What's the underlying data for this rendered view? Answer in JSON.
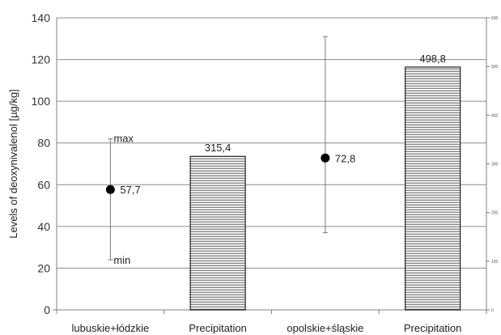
{
  "chart_data": {
    "type": "bar",
    "ylabel": "Levels of deoxynivalenol [µg/kg]",
    "ylim": [
      0,
      140
    ],
    "y_ticks": [
      0,
      20,
      40,
      60,
      80,
      100,
      120,
      140
    ],
    "right_axis": {
      "ylim": [
        0,
        600
      ],
      "ticks": [
        0,
        100,
        200,
        300,
        400,
        500,
        600
      ]
    },
    "grid": true,
    "categories": [
      "lubuskie+łódzkie",
      "Precipitation",
      "opolskie+śląskie",
      "Precipitation"
    ],
    "points": [
      {
        "category": "lubuskie+łódzkie",
        "value": 57.7,
        "label": "57,7",
        "min": 24,
        "max": 82,
        "min_label": "min",
        "max_label": "max"
      },
      {
        "category": "opolskie+śląskie",
        "value": 72.8,
        "label": "72,8",
        "min": 37,
        "max": 131
      }
    ],
    "bars": [
      {
        "category": "Precipitation",
        "value": 315.4,
        "label": "315,4",
        "axis": "right"
      },
      {
        "category": "Precipitation",
        "value": 498.8,
        "label": "498,8",
        "axis": "right"
      }
    ],
    "colors": {
      "axis": "#7f7f7f",
      "grid": "#8c8c8c",
      "marker": "#000000",
      "bar_fill": "#bfbfbf",
      "bar_hatch": "#333333"
    }
  }
}
